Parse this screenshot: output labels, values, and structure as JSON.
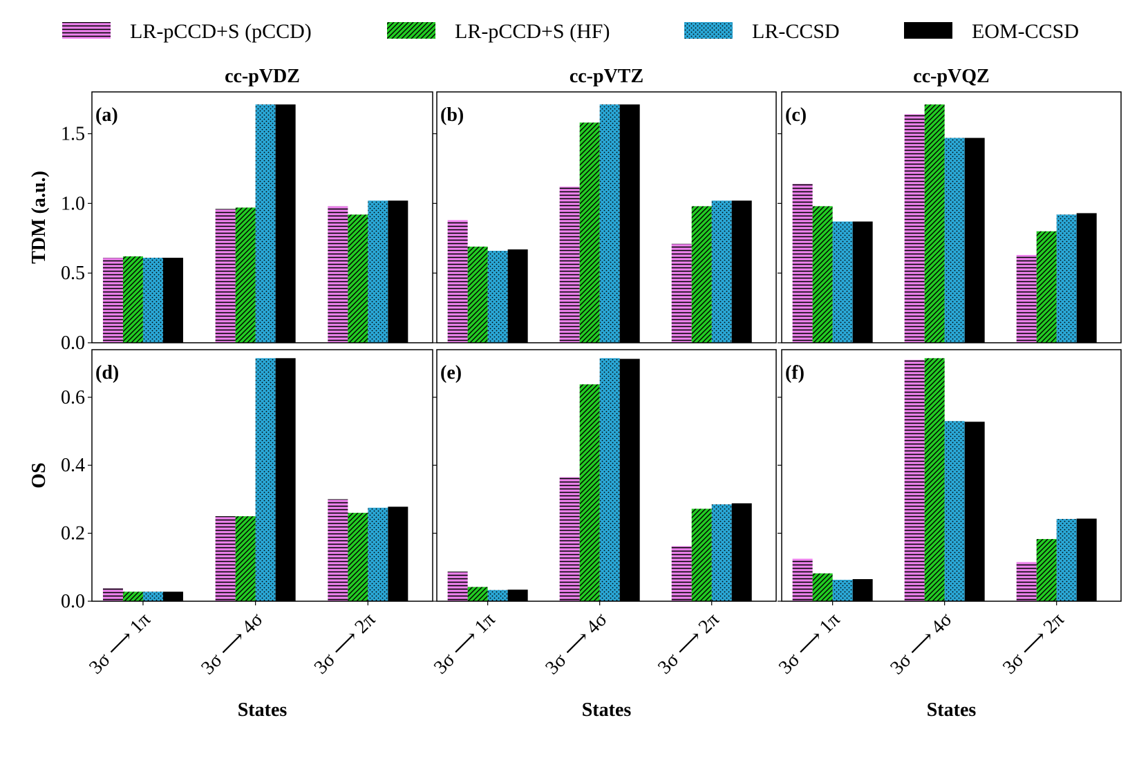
{
  "legend": [
    {
      "label": "LR-pCCD+S (pCCD)",
      "color": "#ee82ee",
      "pattern": "horizontal-lines"
    },
    {
      "label": "LR-pCCD+S (HF)",
      "color": "#22cc22",
      "pattern": "diagonal-hatch"
    },
    {
      "label": "LR-CCSD",
      "color": "#2aa7d6",
      "pattern": "dots"
    },
    {
      "label": "EOM-CCSD",
      "color": "#000000",
      "pattern": "solid"
    }
  ],
  "column_titles": [
    "cc-pVDZ",
    "cc-pVTZ",
    "cc-pVQZ"
  ],
  "row_labels": [
    "TDM (a.u.)",
    "OS"
  ],
  "xlabel": "States",
  "categories": [
    "3σ ⟶ 1π",
    "3σ ⟶ 4σ",
    "3σ ⟶ 2π"
  ],
  "chart_data": [
    {
      "type": "bar",
      "panel_label": "(a)",
      "title": "cc-pVDZ",
      "ylabel": "TDM (a.u.)",
      "xlabel": "",
      "ylim": [
        0,
        1.8
      ],
      "yticks": [
        "0.0",
        "0.5",
        "1.0",
        "1.5"
      ],
      "categories": [
        "3σ ⟶ 1π",
        "3σ ⟶ 4σ",
        "3σ ⟶ 2π"
      ],
      "series": [
        {
          "name": "LR-pCCD+S (pCCD)",
          "values": [
            0.61,
            0.96,
            0.98
          ]
        },
        {
          "name": "LR-pCCD+S (HF)",
          "values": [
            0.62,
            0.97,
            0.92
          ]
        },
        {
          "name": "LR-CCSD",
          "values": [
            0.61,
            1.71,
            1.02
          ]
        },
        {
          "name": "EOM-CCSD",
          "values": [
            0.61,
            1.71,
            1.02
          ]
        }
      ]
    },
    {
      "type": "bar",
      "panel_label": "(b)",
      "title": "cc-pVTZ",
      "ylabel": "",
      "xlabel": "",
      "ylim": [
        0,
        1.8
      ],
      "yticks": [],
      "categories": [
        "3σ ⟶ 1π",
        "3σ ⟶ 4σ",
        "3σ ⟶ 2π"
      ],
      "series": [
        {
          "name": "LR-pCCD+S (pCCD)",
          "values": [
            0.88,
            1.12,
            0.71
          ]
        },
        {
          "name": "LR-pCCD+S (HF)",
          "values": [
            0.69,
            1.58,
            0.98
          ]
        },
        {
          "name": "LR-CCSD",
          "values": [
            0.66,
            1.71,
            1.02
          ]
        },
        {
          "name": "EOM-CCSD",
          "values": [
            0.67,
            1.71,
            1.02
          ]
        }
      ]
    },
    {
      "type": "bar",
      "panel_label": "(c)",
      "title": "cc-pVQZ",
      "ylabel": "",
      "xlabel": "",
      "ylim": [
        0,
        1.8
      ],
      "yticks": [],
      "categories": [
        "3σ ⟶ 1π",
        "3σ ⟶ 4σ",
        "3σ ⟶ 2π"
      ],
      "series": [
        {
          "name": "LR-pCCD+S (pCCD)",
          "values": [
            1.14,
            1.64,
            0.63
          ]
        },
        {
          "name": "LR-pCCD+S (HF)",
          "values": [
            0.98,
            1.71,
            0.8
          ]
        },
        {
          "name": "LR-CCSD",
          "values": [
            0.87,
            1.47,
            0.92
          ]
        },
        {
          "name": "EOM-CCSD",
          "values": [
            0.87,
            1.47,
            0.93
          ]
        }
      ]
    },
    {
      "type": "bar",
      "panel_label": "(d)",
      "title": "",
      "ylabel": "OS",
      "xlabel": "States",
      "ylim": [
        0,
        0.74
      ],
      "yticks": [
        "0.0",
        "0.2",
        "0.4",
        "0.6"
      ],
      "categories": [
        "3σ ⟶ 1π",
        "3σ ⟶ 4σ",
        "3σ ⟶ 2π"
      ],
      "series": [
        {
          "name": "LR-pCCD+S (pCCD)",
          "values": [
            0.038,
            0.25,
            0.3
          ]
        },
        {
          "name": "LR-pCCD+S (HF)",
          "values": [
            0.028,
            0.25,
            0.26
          ]
        },
        {
          "name": "LR-CCSD",
          "values": [
            0.028,
            0.715,
            0.275
          ]
        },
        {
          "name": "EOM-CCSD",
          "values": [
            0.028,
            0.715,
            0.278
          ]
        }
      ]
    },
    {
      "type": "bar",
      "panel_label": "(e)",
      "title": "",
      "ylabel": "",
      "xlabel": "States",
      "ylim": [
        0,
        0.74
      ],
      "yticks": [],
      "categories": [
        "3σ ⟶ 1π",
        "3σ ⟶ 4σ",
        "3σ ⟶ 2π"
      ],
      "series": [
        {
          "name": "LR-pCCD+S (pCCD)",
          "values": [
            0.087,
            0.365,
            0.162
          ]
        },
        {
          "name": "LR-pCCD+S (HF)",
          "values": [
            0.042,
            0.638,
            0.272
          ]
        },
        {
          "name": "LR-CCSD",
          "values": [
            0.033,
            0.715,
            0.285
          ]
        },
        {
          "name": "EOM-CCSD",
          "values": [
            0.034,
            0.713,
            0.288
          ]
        }
      ]
    },
    {
      "type": "bar",
      "panel_label": "(f)",
      "title": "",
      "ylabel": "",
      "xlabel": "States",
      "ylim": [
        0,
        0.74
      ],
      "yticks": [],
      "categories": [
        "3σ ⟶ 1π",
        "3σ ⟶ 4σ",
        "3σ ⟶ 2π"
      ],
      "series": [
        {
          "name": "LR-pCCD+S (pCCD)",
          "values": [
            0.125,
            0.71,
            0.115
          ]
        },
        {
          "name": "LR-pCCD+S (HF)",
          "values": [
            0.082,
            0.715,
            0.183
          ]
        },
        {
          "name": "LR-CCSD",
          "values": [
            0.063,
            0.53,
            0.242
          ]
        },
        {
          "name": "EOM-CCSD",
          "values": [
            0.065,
            0.528,
            0.243
          ]
        }
      ]
    }
  ]
}
